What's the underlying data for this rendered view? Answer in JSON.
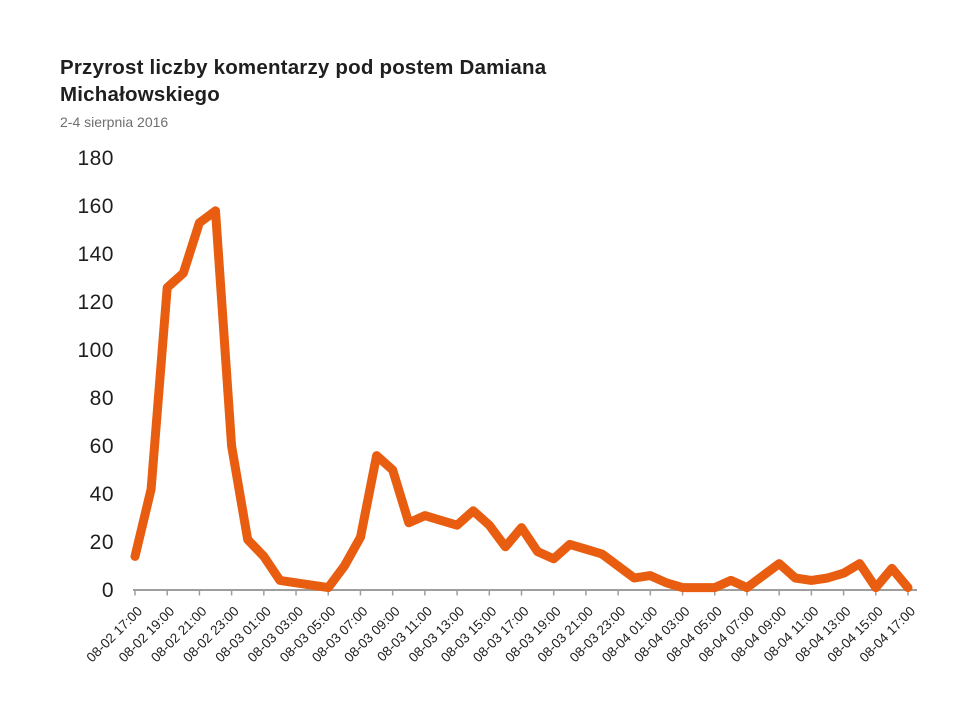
{
  "header": {
    "title": "Przyrost liczby komentarzy pod postem Damiana Michałowskiego",
    "subtitle": "2-4 sierpnia 2016"
  },
  "colors": {
    "line": "#e85d10",
    "axis": "#9e9e9e",
    "tick_label": "#1f1f1f",
    "title": "#1f1f1f",
    "subtitle": "#6f6f6f"
  },
  "chart_data": {
    "type": "line",
    "title": "Przyrost liczby komentarzy pod postem Damiana Michałowskiego",
    "subtitle": "2-4 sierpnia 2016",
    "xlabel": "",
    "ylabel": "",
    "ylim": [
      0,
      180
    ],
    "y_ticks": [
      0,
      20,
      40,
      60,
      80,
      100,
      120,
      140,
      160,
      180
    ],
    "grid": false,
    "legend_position": "none",
    "x_tick_labels": [
      "08-02 17:00",
      "08-02 19:00",
      "08-02 21:00",
      "08-02 23:00",
      "08-03 01:00",
      "08-03 03:00",
      "08-03 05:00",
      "08-03 07:00",
      "08-03 09:00",
      "08-03 11:00",
      "08-03 13:00",
      "08-03 15:00",
      "08-03 17:00",
      "08-03 19:00",
      "08-03 21:00",
      "08-03 23:00",
      "08-04 01:00",
      "08-04 03:00",
      "08-04 05:00",
      "08-04 07:00",
      "08-04 09:00",
      "08-04 11:00",
      "08-04 13:00",
      "08-04 15:00",
      "08-04 17:00"
    ],
    "series": [
      {
        "name": "Przyrost liczby komentarzy",
        "color": "#e85d10",
        "x": [
          "08-02 17:00",
          "08-02 18:00",
          "08-02 19:00",
          "08-02 20:00",
          "08-02 21:00",
          "08-02 22:00",
          "08-02 23:00",
          "08-03 00:00",
          "08-03 01:00",
          "08-03 02:00",
          "08-03 03:00",
          "08-03 04:00",
          "08-03 05:00",
          "08-03 06:00",
          "08-03 07:00",
          "08-03 08:00",
          "08-03 09:00",
          "08-03 10:00",
          "08-03 11:00",
          "08-03 12:00",
          "08-03 13:00",
          "08-03 14:00",
          "08-03 15:00",
          "08-03 16:00",
          "08-03 17:00",
          "08-03 18:00",
          "08-03 19:00",
          "08-03 20:00",
          "08-03 21:00",
          "08-03 22:00",
          "08-03 23:00",
          "08-04 00:00",
          "08-04 01:00",
          "08-04 02:00",
          "08-04 03:00",
          "08-04 04:00",
          "08-04 05:00",
          "08-04 06:00",
          "08-04 07:00",
          "08-04 08:00",
          "08-04 09:00",
          "08-04 10:00",
          "08-04 11:00",
          "08-04 12:00",
          "08-04 13:00",
          "08-04 14:00",
          "08-04 15:00",
          "08-04 16:00",
          "08-04 17:00"
        ],
        "values": [
          14,
          42,
          126,
          132,
          153,
          158,
          60,
          21,
          14,
          4,
          3,
          2,
          1,
          10,
          22,
          56,
          50,
          28,
          31,
          29,
          27,
          33,
          27,
          18,
          26,
          16,
          13,
          19,
          17,
          15,
          10,
          5,
          6,
          3,
          1,
          1,
          1,
          4,
          1,
          6,
          11,
          5,
          4,
          5,
          7,
          11,
          1,
          9,
          1
        ]
      }
    ]
  }
}
